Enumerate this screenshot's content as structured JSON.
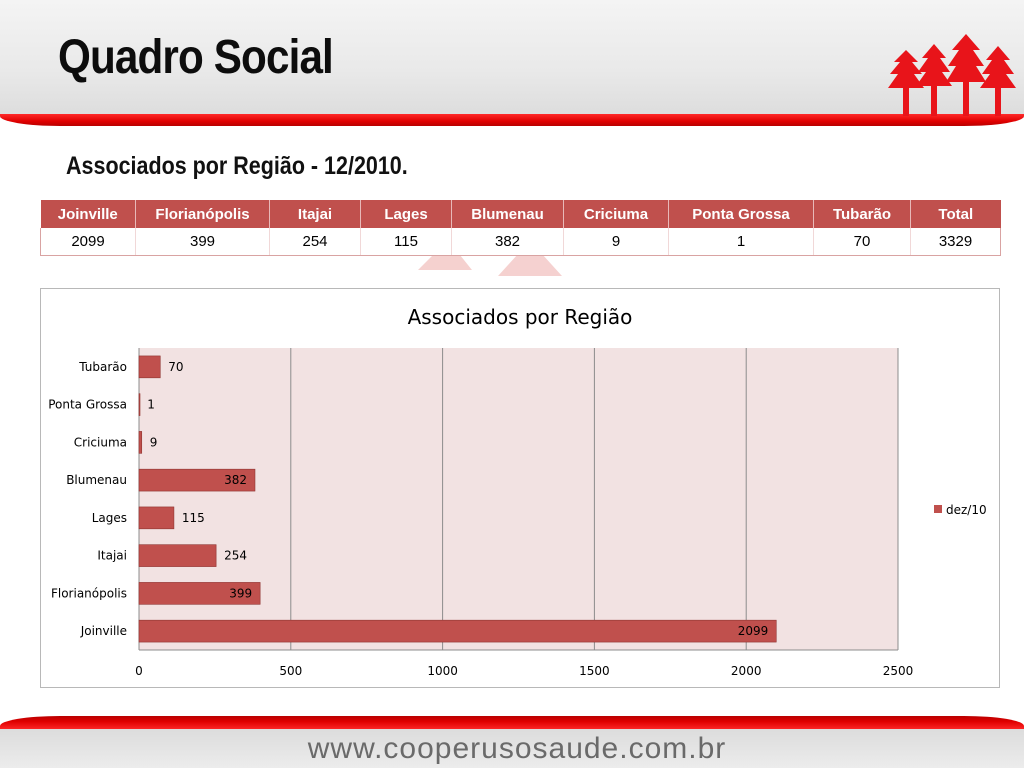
{
  "header": {
    "title": "Quadro Social"
  },
  "subtitle": "Associados por Região - 12/2010.",
  "table": {
    "headers": [
      "Joinville",
      "Florianópolis",
      "Itajai",
      "Lages",
      "Blumenau",
      "Criciuma",
      "Ponta Grossa",
      "Tubarão",
      "Total"
    ],
    "values": [
      "2099",
      "399",
      "254",
      "115",
      "382",
      "9",
      "1",
      "70",
      "3329"
    ]
  },
  "chart_data": {
    "type": "bar",
    "orientation": "horizontal",
    "title": "Associados por Região",
    "categories": [
      "Joinville",
      "Florianópolis",
      "Itajai",
      "Lages",
      "Blumenau",
      "Criciuma",
      "Ponta Grossa",
      "Tubarão"
    ],
    "series": [
      {
        "name": "dez/10",
        "values": [
          2099,
          399,
          254,
          115,
          382,
          9,
          1,
          70
        ],
        "color": "#c0504d"
      }
    ],
    "xlim": [
      0,
      2500
    ],
    "xticks": [
      0,
      500,
      1000,
      1500,
      2000,
      2500
    ],
    "grid": true,
    "legend_position": "right",
    "plot_background": "#f2e2e2"
  },
  "footer": {
    "url": "www.cooperusosaude.com.br"
  },
  "colors": {
    "accent": "#c0504d",
    "brand_red": "#e00000"
  }
}
